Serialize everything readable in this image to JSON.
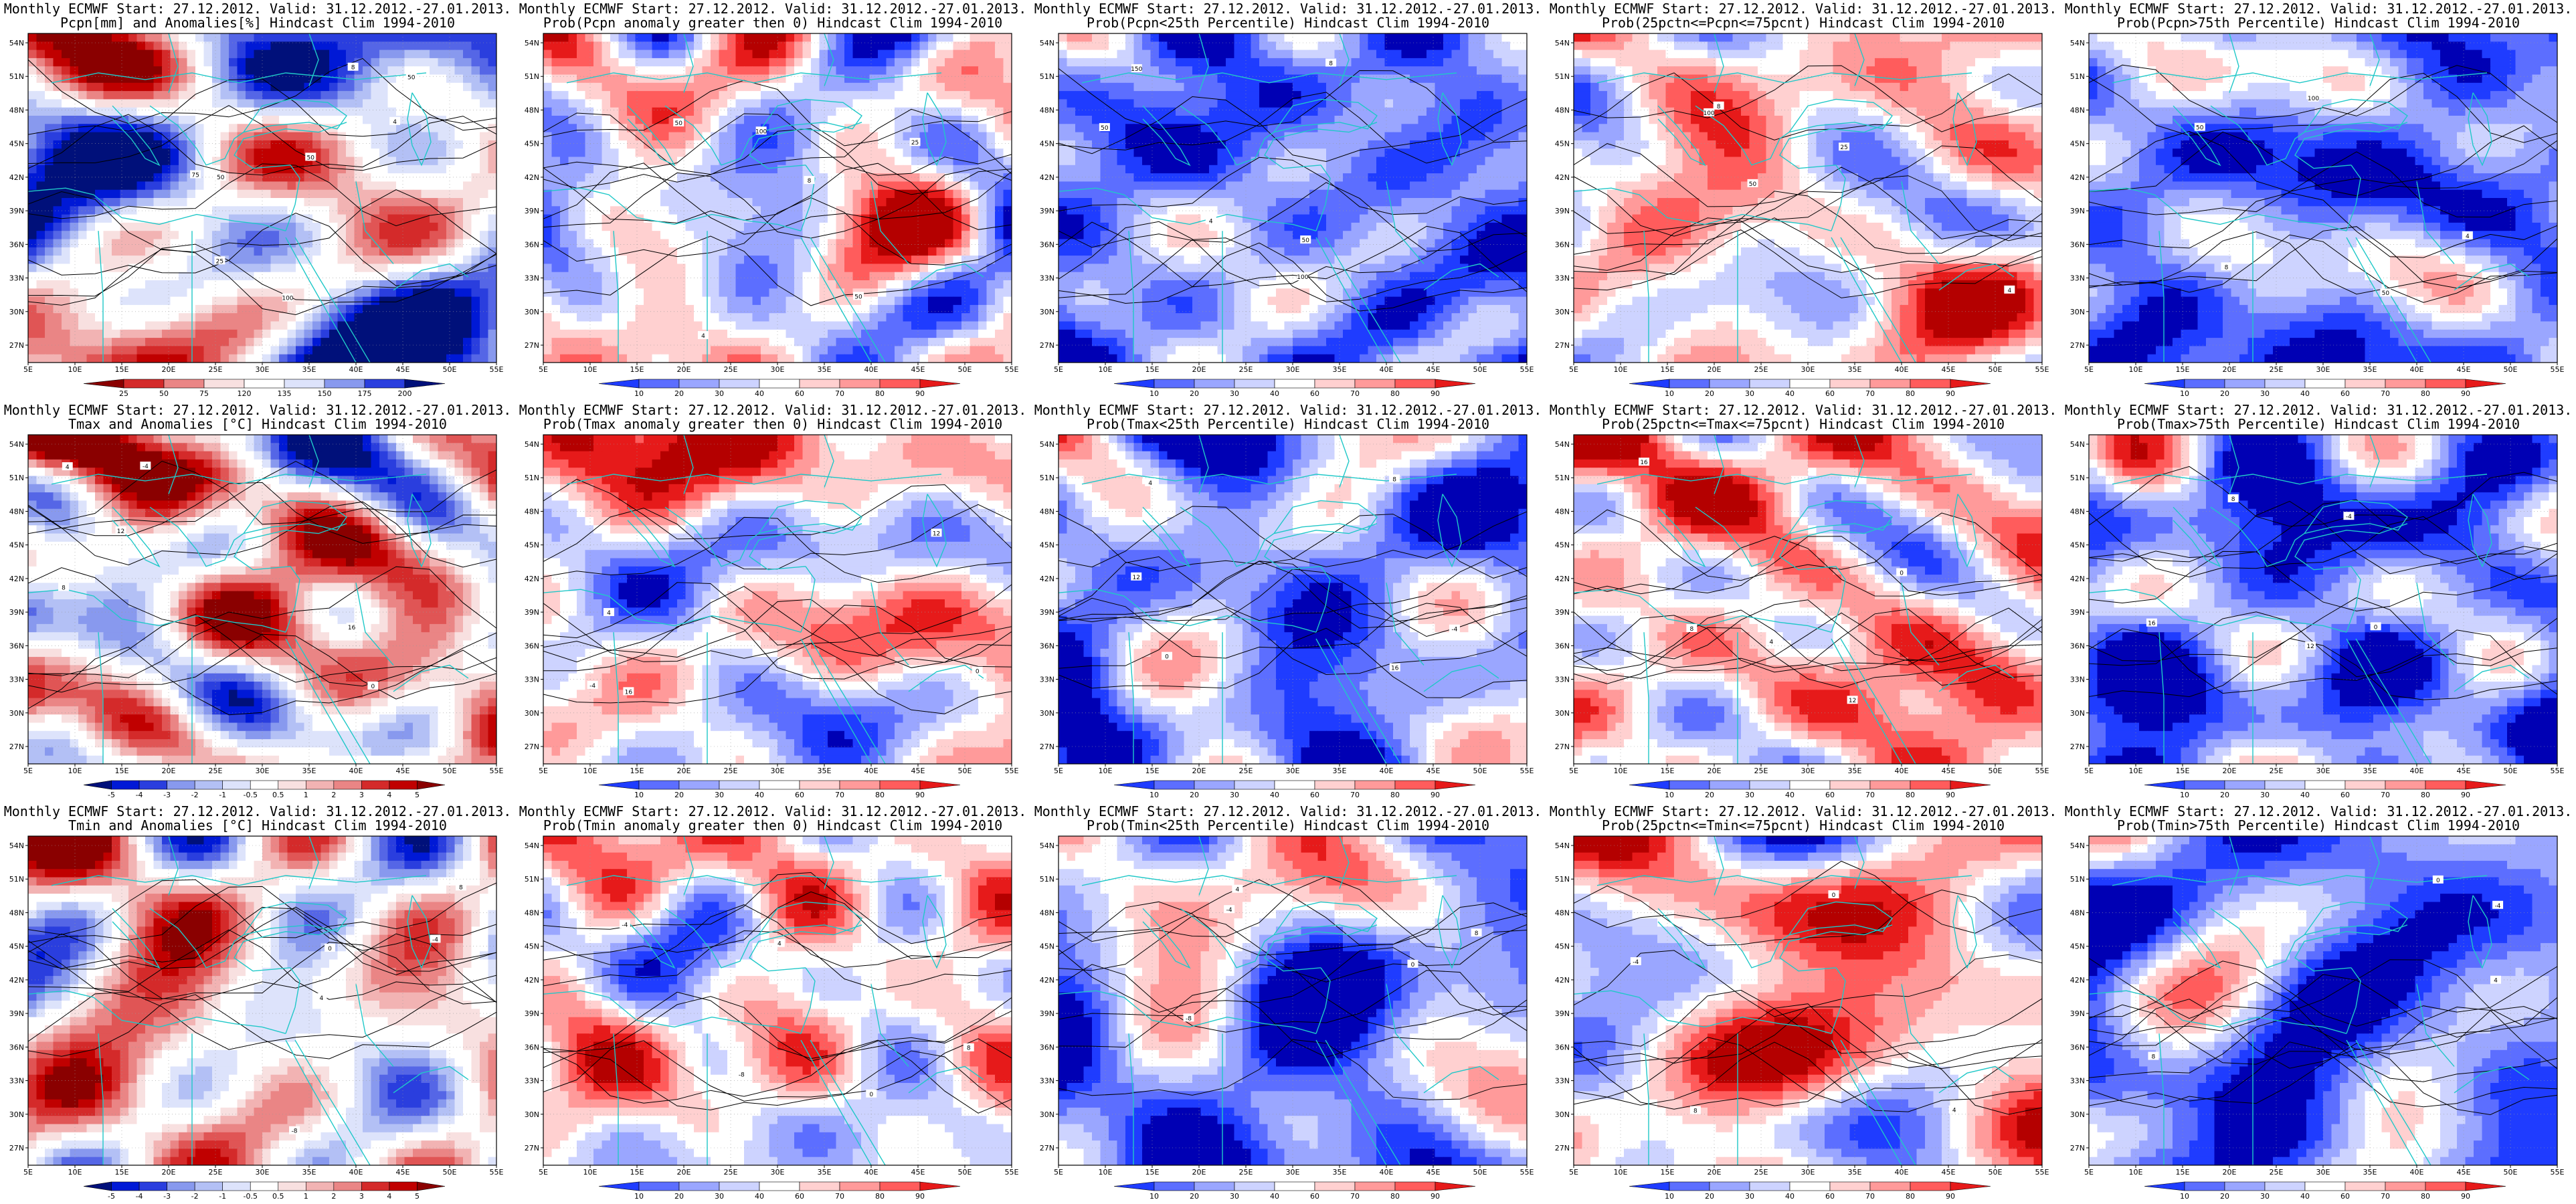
{
  "maps": {
    "lon_ticks": [
      "5E",
      "10E",
      "15E",
      "20E",
      "25E",
      "30E",
      "35E",
      "40E",
      "45E",
      "50E",
      "55E"
    ],
    "lat_ticks": [
      "54N",
      "51N",
      "48N",
      "45N",
      "42N",
      "39N",
      "36N",
      "33N",
      "30N",
      "27N"
    ]
  },
  "colors": {
    "pos_scale": [
      "#f8e0e0",
      "#f2b3b3",
      "#ea8585",
      "#e05555",
      "#d42a2a",
      "#c00000",
      "#8a0000"
    ],
    "neg_scale": [
      "#dde3fb",
      "#b3c0f5",
      "#8899ee",
      "#5566e6",
      "#2a3ede",
      "#0019d6",
      "#00107a"
    ],
    "prob_bins": [
      "#0000b4",
      "#1f3cff",
      "#5c6eff",
      "#9aa6ff",
      "#cdd3ff",
      "#ffffff",
      "#ffd0d0",
      "#ff9a9a",
      "#ff5c5c",
      "#e61a1a",
      "#b40000"
    ],
    "coast": "#20c8c8",
    "contour": "#000000"
  },
  "colorbars": {
    "precip": [
      "25",
      "50",
      "75",
      "120",
      "135",
      "150",
      "175",
      "200"
    ],
    "anom": [
      "-5",
      "-4",
      "-3",
      "-2",
      "-1",
      "-0.5",
      "0.5",
      "1",
      "2",
      "3",
      "4",
      "5"
    ],
    "prob": [
      "10",
      "20",
      "30",
      "40",
      "60",
      "70",
      "80",
      "90"
    ]
  },
  "panels": [
    {
      "line1": "Monthly ECMWF Start: 27.12.2012. Valid: 31.12.2012.-27.01.2013.",
      "line2": "Pcpn[mm] and Anomalies[%] Hindcast Clim 1994-2010",
      "cbar": "precip",
      "palette": "pct",
      "seed": 11,
      "bias": -0.15,
      "contour_labels": [
        "50",
        "50",
        "25",
        "50",
        "75",
        "100",
        "4",
        "8"
      ]
    },
    {
      "line1": "Monthly ECMWF Start: 27.12.2012. Valid: 31.12.2012.-27.01.2013.",
      "line2": "Prob(Pcpn anomaly greater then 0) Hindcast Clim 1994-2010",
      "cbar": "prob",
      "palette": "prob",
      "seed": 12,
      "bias": -0.05,
      "contour_labels": [
        "50",
        "25",
        "100",
        "50",
        "4",
        "8"
      ]
    },
    {
      "line1": "Monthly ECMWF Start: 27.12.2012. Valid: 31.12.2012.-27.01.2013.",
      "line2": "Prob(Pcpn<25th Percentile) Hindcast Clim 1994-2010",
      "cbar": "prob",
      "palette": "prob",
      "seed": 13,
      "bias": -0.55,
      "contour_labels": [
        "50",
        "50",
        "100",
        "150",
        "4",
        "8"
      ]
    },
    {
      "line1": "Monthly ECMWF Start: 27.12.2012. Valid: 31.12.2012.-27.01.2013.",
      "line2": "Prob(25pctn<=Pcpn<=75pcnt) Hindcast Clim 1994-2010",
      "cbar": "prob",
      "palette": "prob",
      "seed": 14,
      "bias": 0.1,
      "contour_labels": [
        "50",
        "100",
        "25",
        "4",
        "8"
      ]
    },
    {
      "line1": "Monthly ECMWF Start: 27.12.2012. Valid: 31.12.2012.-27.01.2013.",
      "line2": "Prob(Pcpn>75th Percentile) Hindcast Clim 1994-2010",
      "cbar": "prob",
      "palette": "prob",
      "seed": 15,
      "bias": -0.5,
      "contour_labels": [
        "50",
        "100",
        "50",
        "4",
        "8"
      ]
    },
    {
      "line1": "Monthly ECMWF Start: 27.12.2012. Valid: 31.12.2012.-27.01.2013.",
      "line2": "Tmax and Anomalies [°C] Hindcast Clim 1994-2010",
      "cbar": "anom",
      "palette": "anom",
      "seed": 21,
      "bias": 0.15,
      "contour_labels": [
        "-4",
        "0",
        "4",
        "8",
        "12",
        "16"
      ]
    },
    {
      "line1": "Monthly ECMWF Start: 27.12.2012. Valid: 31.12.2012.-27.01.2013.",
      "line2": "Prob(Tmax anomaly greater then 0) Hindcast Clim 1994-2010",
      "cbar": "prob",
      "palette": "prob",
      "seed": 22,
      "bias": 0.05,
      "contour_labels": [
        "-4",
        "0",
        "4",
        "12",
        "16"
      ]
    },
    {
      "line1": "Monthly ECMWF Start: 27.12.2012. Valid: 31.12.2012.-27.01.2013.",
      "line2": "Prob(Tmax<25th Percentile) Hindcast Clim 1994-2010",
      "cbar": "prob",
      "palette": "prob",
      "seed": 23,
      "bias": -0.45,
      "contour_labels": [
        "-4",
        "0",
        "4",
        "8",
        "12",
        "16"
      ]
    },
    {
      "line1": "Monthly ECMWF Start: 27.12.2012. Valid: 31.12.2012.-27.01.2013.",
      "line2": "Prob(25pctn<=Tmax<=75pcnt) Hindcast Clim 1994-2010",
      "cbar": "prob",
      "palette": "prob",
      "seed": 24,
      "bias": 0.2,
      "contour_labels": [
        "0",
        "4",
        "8",
        "12",
        "16"
      ]
    },
    {
      "line1": "Monthly ECMWF Start: 27.12.2012. Valid: 31.12.2012.-27.01.2013.",
      "line2": "Prob(Tmax>75th Percentile) Hindcast Clim 1994-2010",
      "cbar": "prob",
      "palette": "prob",
      "seed": 25,
      "bias": -0.55,
      "contour_labels": [
        "-4",
        "0",
        "8",
        "12",
        "16"
      ]
    },
    {
      "line1": "Monthly ECMWF Start: 27.12.2012. Valid: 31.12.2012.-27.01.2013.",
      "line2": "Tmin and Anomalies [°C] Hindcast Clim 1994-2010",
      "cbar": "anom",
      "palette": "anom",
      "seed": 31,
      "bias": 0.1,
      "contour_labels": [
        "-8",
        "-4",
        "0",
        "4",
        "8"
      ]
    },
    {
      "line1": "Monthly ECMWF Start: 27.12.2012. Valid: 31.12.2012.-27.01.2013.",
      "line2": "Prob(Tmin anomaly greater then 0) Hindcast Clim 1994-2010",
      "cbar": "prob",
      "palette": "prob",
      "seed": 32,
      "bias": 0.05,
      "contour_labels": [
        "-8",
        "-4",
        "0",
        "4",
        "8"
      ]
    },
    {
      "line1": "Monthly ECMWF Start: 27.12.2012. Valid: 31.12.2012.-27.01.2013.",
      "line2": "Prob(Tmin<25th Percentile) Hindcast Clim 1994-2010",
      "cbar": "prob",
      "palette": "prob",
      "seed": 33,
      "bias": -0.4,
      "contour_labels": [
        "-8",
        "-4",
        "0",
        "4",
        "8"
      ]
    },
    {
      "line1": "Monthly ECMWF Start: 27.12.2012. Valid: 31.12.2012.-27.01.2013.",
      "line2": "Prob(25pctn<=Tmin<=75pcnt) Hindcast Clim 1994-2010",
      "cbar": "prob",
      "palette": "prob",
      "seed": 34,
      "bias": 0.15,
      "contour_labels": [
        "-4",
        "0",
        "4",
        "8"
      ]
    },
    {
      "line1": "Monthly ECMWF Start: 27.12.2012. Valid: 31.12.2012.-27.01.2013.",
      "line2": "Prob(Tmin>75th Percentile) Hindcast Clim 1994-2010",
      "cbar": "prob",
      "palette": "prob",
      "seed": 35,
      "bias": -0.55,
      "contour_labels": [
        "-4",
        "0",
        "4",
        "8"
      ]
    }
  ]
}
